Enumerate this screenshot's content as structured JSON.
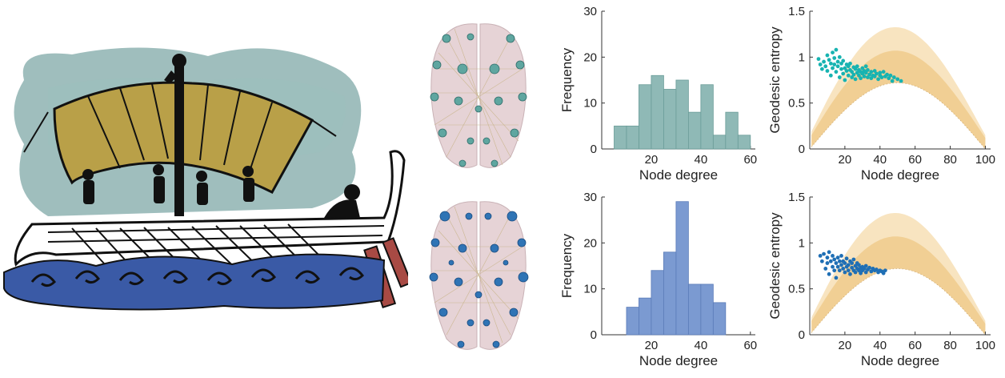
{
  "colors": {
    "teal": "#8fb9b6",
    "teal_edge": "#6a9c98",
    "blue": "#7b9ad1",
    "blue_edge": "#5a7bb8",
    "scatter_teal": "#17b3b1",
    "scatter_blue": "#1f6fb5",
    "band_light": "#f8e4c0",
    "band_dark": "#f1cf94",
    "sea": "#3a5aa6",
    "sky": "#7fa8a7",
    "sail": "#b9a048"
  },
  "chart_data": [
    {
      "type": "bar",
      "id": "hist-top",
      "xlabel": "Node degree",
      "ylabel": "Frequency",
      "xlim": [
        0,
        62
      ],
      "ylim": [
        0,
        30
      ],
      "xticks": [
        20,
        40,
        60
      ],
      "yticks": [
        0,
        10,
        20,
        30
      ],
      "bin_edges": [
        5,
        10,
        15,
        20,
        25,
        30,
        35,
        40,
        45,
        50,
        55,
        60
      ],
      "values": [
        5,
        5,
        14,
        16,
        13,
        15,
        8,
        14,
        3,
        8,
        3
      ],
      "color": "teal"
    },
    {
      "type": "bar",
      "id": "hist-bottom",
      "xlabel": "Node degree",
      "ylabel": "Frequency",
      "xlim": [
        0,
        62
      ],
      "ylim": [
        0,
        30
      ],
      "xticks": [
        20,
        40,
        60
      ],
      "yticks": [
        0,
        10,
        20,
        30
      ],
      "bin_edges": [
        10,
        15,
        20,
        25,
        30,
        35,
        40,
        45,
        50
      ],
      "values": [
        6,
        8,
        14,
        18,
        29,
        11,
        11,
        7
      ],
      "color": "blue"
    },
    {
      "type": "scatter",
      "id": "scatter-top",
      "xlabel": "Node degree",
      "ylabel": "Geodesic entropy",
      "xlim": [
        0,
        103
      ],
      "ylim": [
        0,
        1.5
      ],
      "xticks": [
        20,
        40,
        60,
        80,
        100
      ],
      "yticks": [
        0,
        0.5,
        1,
        1.5
      ],
      "yticklabels": [
        "0",
        "0.5",
        "1",
        "1.5"
      ],
      "color": "scatter_teal",
      "points": [
        [
          5,
          0.98
        ],
        [
          6,
          0.92
        ],
        [
          7,
          0.87
        ],
        [
          8,
          0.95
        ],
        [
          9,
          0.9
        ],
        [
          10,
          1.02
        ],
        [
          10,
          0.85
        ],
        [
          11,
          0.97
        ],
        [
          12,
          0.93
        ],
        [
          12,
          0.8
        ],
        [
          13,
          1.05
        ],
        [
          13,
          0.88
        ],
        [
          14,
          0.92
        ],
        [
          14,
          0.99
        ],
        [
          15,
          1.08
        ],
        [
          15,
          0.84
        ],
        [
          16,
          0.9
        ],
        [
          16,
          0.95
        ],
        [
          17,
          0.78
        ],
        [
          17,
          1.0
        ],
        [
          18,
          0.87
        ],
        [
          18,
          0.93
        ],
        [
          19,
          0.82
        ],
        [
          19,
          0.96
        ],
        [
          20,
          0.88
        ],
        [
          20,
          0.75
        ],
        [
          21,
          0.92
        ],
        [
          21,
          0.85
        ],
        [
          22,
          0.8
        ],
        [
          22,
          0.9
        ],
        [
          23,
          0.86
        ],
        [
          23,
          0.93
        ],
        [
          24,
          0.78
        ],
        [
          24,
          0.84
        ],
        [
          25,
          0.89
        ],
        [
          25,
          0.81
        ],
        [
          26,
          0.87
        ],
        [
          26,
          0.76
        ],
        [
          27,
          0.83
        ],
        [
          27,
          0.9
        ],
        [
          28,
          0.8
        ],
        [
          28,
          0.86
        ],
        [
          29,
          0.84
        ],
        [
          29,
          0.77
        ],
        [
          30,
          0.88
        ],
        [
          30,
          0.82
        ],
        [
          31,
          0.79
        ],
        [
          31,
          0.85
        ],
        [
          32,
          0.83
        ],
        [
          32,
          0.9
        ],
        [
          33,
          0.78
        ],
        [
          33,
          0.86
        ],
        [
          34,
          0.81
        ],
        [
          35,
          0.84
        ],
        [
          35,
          0.77
        ],
        [
          36,
          0.8
        ],
        [
          37,
          0.85
        ],
        [
          37,
          0.79
        ],
        [
          38,
          0.82
        ],
        [
          39,
          0.76
        ],
        [
          40,
          0.83
        ],
        [
          40,
          0.8
        ],
        [
          41,
          0.78
        ],
        [
          42,
          0.84
        ],
        [
          43,
          0.79
        ],
        [
          44,
          0.81
        ],
        [
          45,
          0.77
        ],
        [
          46,
          0.8
        ],
        [
          47,
          0.74
        ],
        [
          48,
          0.78
        ],
        [
          50,
          0.76
        ],
        [
          52,
          0.74
        ]
      ]
    },
    {
      "type": "scatter",
      "id": "scatter-bottom",
      "xlabel": "Node degree",
      "ylabel": "Geodesic entropy",
      "xlim": [
        0,
        103
      ],
      "ylim": [
        0,
        1.5
      ],
      "xticks": [
        20,
        40,
        60,
        80,
        100
      ],
      "yticks": [
        0,
        0.5,
        1,
        1.5
      ],
      "yticklabels": [
        "0",
        "0.5",
        "1",
        "1.5"
      ],
      "color": "scatter_blue",
      "points": [
        [
          6,
          0.86
        ],
        [
          7,
          0.8
        ],
        [
          8,
          0.88
        ],
        [
          9,
          0.72
        ],
        [
          10,
          0.84
        ],
        [
          10,
          0.78
        ],
        [
          11,
          0.66
        ],
        [
          11,
          0.9
        ],
        [
          12,
          0.8
        ],
        [
          13,
          0.86
        ],
        [
          13,
          0.74
        ],
        [
          14,
          0.7
        ],
        [
          14,
          0.82
        ],
        [
          15,
          0.78
        ],
        [
          15,
          0.62
        ],
        [
          16,
          0.84
        ],
        [
          16,
          0.74
        ],
        [
          17,
          0.8
        ],
        [
          17,
          0.7
        ],
        [
          18,
          0.76
        ],
        [
          18,
          0.86
        ],
        [
          19,
          0.72
        ],
        [
          19,
          0.8
        ],
        [
          20,
          0.68
        ],
        [
          20,
          0.78
        ],
        [
          21,
          0.74
        ],
        [
          21,
          0.83
        ],
        [
          22,
          0.7
        ],
        [
          22,
          0.76
        ],
        [
          23,
          0.8
        ],
        [
          23,
          0.66
        ],
        [
          24,
          0.73
        ],
        [
          24,
          0.78
        ],
        [
          25,
          0.7
        ],
        [
          25,
          0.82
        ],
        [
          26,
          0.75
        ],
        [
          26,
          0.68
        ],
        [
          27,
          0.72
        ],
        [
          27,
          0.78
        ],
        [
          28,
          0.7
        ],
        [
          28,
          0.76
        ],
        [
          29,
          0.73
        ],
        [
          29,
          0.67
        ],
        [
          30,
          0.74
        ],
        [
          30,
          0.7
        ],
        [
          31,
          0.72
        ],
        [
          32,
          0.68
        ],
        [
          32,
          0.75
        ],
        [
          33,
          0.71
        ],
        [
          34,
          0.73
        ],
        [
          35,
          0.69
        ],
        [
          36,
          0.72
        ],
        [
          37,
          0.7
        ],
        [
          38,
          0.71
        ],
        [
          39,
          0.68
        ],
        [
          40,
          0.7
        ],
        [
          41,
          0.69
        ],
        [
          42,
          0.67
        ],
        [
          43,
          0.7
        ]
      ]
    }
  ]
}
